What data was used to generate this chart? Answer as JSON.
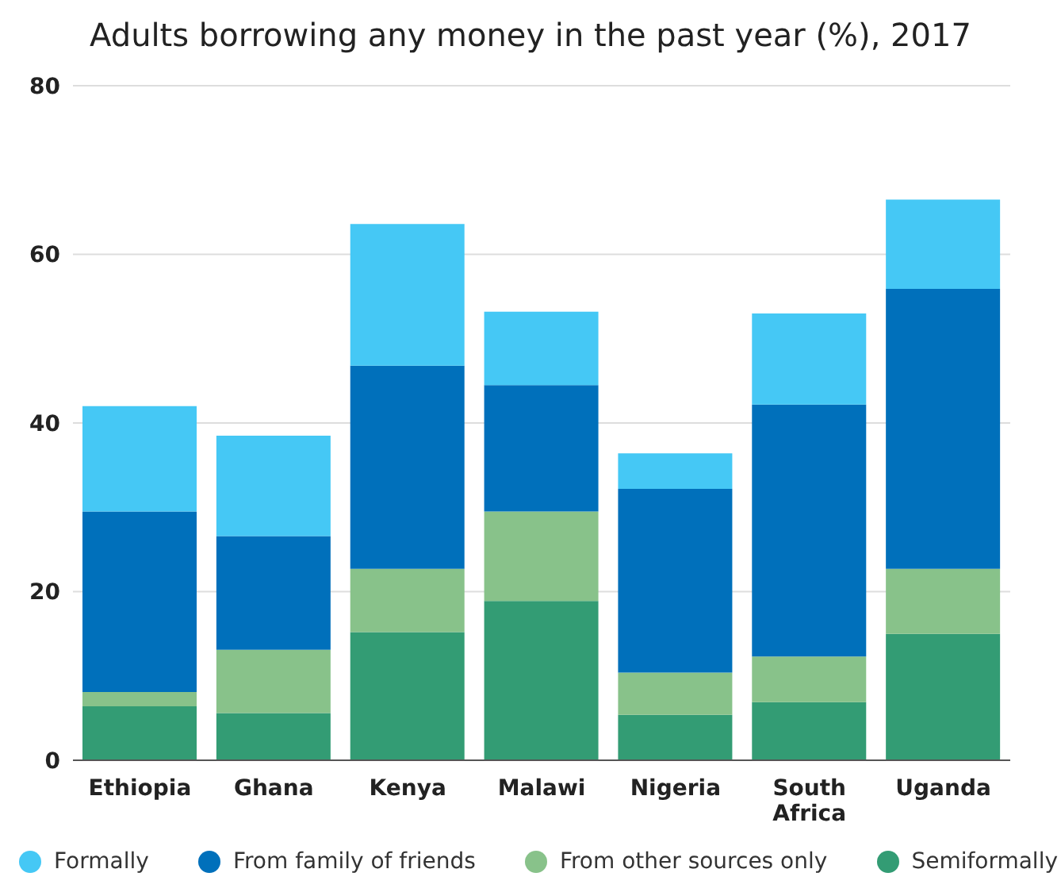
{
  "chart_data": {
    "type": "bar",
    "stacked": true,
    "title": "Adults borrowing any money in the past year (%), 2017",
    "categories": [
      "Ethiopia",
      "Ghana",
      "Kenya",
      "Malawi",
      "Nigeria",
      "South Africa",
      "Uganda"
    ],
    "series": [
      {
        "name": "Semiformally",
        "color": "#339c74",
        "values": [
          6.4,
          5.6,
          15.2,
          18.9,
          5.4,
          6.9,
          15.0
        ]
      },
      {
        "name": "From other sources only",
        "color": "#88c28a",
        "values": [
          1.7,
          7.5,
          7.5,
          10.6,
          5.0,
          5.4,
          7.7
        ]
      },
      {
        "name": "From family of friends",
        "color": "#0070bb",
        "values": [
          21.4,
          13.5,
          24.1,
          15.0,
          21.8,
          29.9,
          33.2
        ]
      },
      {
        "name": "Formally",
        "color": "#45c8f5",
        "values": [
          12.5,
          11.9,
          16.8,
          8.7,
          4.2,
          10.8,
          10.6
        ]
      }
    ],
    "ylim": [
      0,
      80
    ],
    "yticks": [
      0,
      20,
      40,
      60,
      80
    ],
    "grid": "y",
    "legend": "bottom"
  }
}
